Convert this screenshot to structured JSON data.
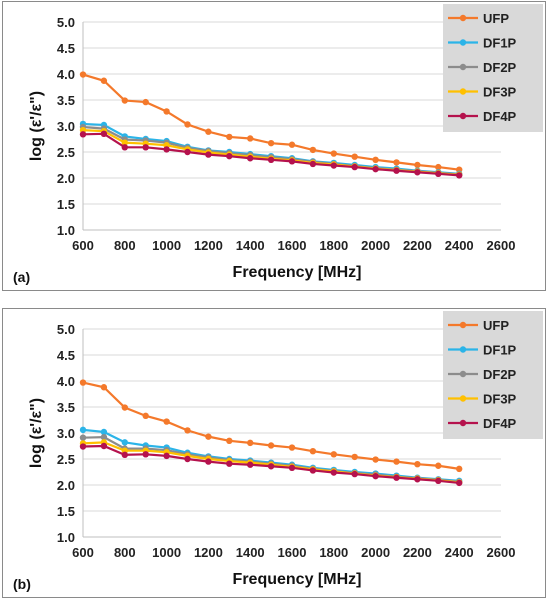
{
  "chart_data": [
    {
      "type": "line",
      "panel_label": "(a)",
      "xlabel": "Frequency [MHz]",
      "ylabel": "log (ε'/ε\")",
      "xlim": [
        600,
        2600
      ],
      "ylim": [
        1.0,
        5.0
      ],
      "xticks": [
        600,
        800,
        1000,
        1200,
        1400,
        1600,
        1800,
        2000,
        2200,
        2400,
        2600
      ],
      "yticks": [
        "1.0",
        "1.5",
        "2.0",
        "2.5",
        "3.0",
        "3.5",
        "4.0",
        "4.5",
        "5.0"
      ],
      "grid": true,
      "legend": "top-right",
      "x": [
        600,
        700,
        800,
        900,
        1000,
        1100,
        1200,
        1300,
        1400,
        1500,
        1600,
        1700,
        1800,
        1900,
        2000,
        2100,
        2200,
        2300,
        2400
      ],
      "series": [
        {
          "name": "UFP",
          "color": "#f4792b",
          "values": [
            3.99,
            3.87,
            3.49,
            3.46,
            3.28,
            3.03,
            2.89,
            2.79,
            2.76,
            2.67,
            2.64,
            2.54,
            2.47,
            2.41,
            2.35,
            2.3,
            2.25,
            2.21,
            2.16
          ]
        },
        {
          "name": "DF1P",
          "color": "#2bb4e8",
          "values": [
            3.04,
            3.02,
            2.8,
            2.75,
            2.71,
            2.6,
            2.53,
            2.5,
            2.46,
            2.42,
            2.38,
            2.32,
            2.29,
            2.25,
            2.21,
            2.18,
            2.14,
            2.11,
            2.08
          ]
        },
        {
          "name": "DF2P",
          "color": "#8c8c8c",
          "values": [
            2.98,
            2.95,
            2.74,
            2.72,
            2.68,
            2.58,
            2.52,
            2.48,
            2.44,
            2.4,
            2.36,
            2.31,
            2.27,
            2.23,
            2.19,
            2.16,
            2.13,
            2.1,
            2.07
          ]
        },
        {
          "name": "DF3P",
          "color": "#ffc000",
          "values": [
            2.92,
            2.9,
            2.68,
            2.66,
            2.63,
            2.55,
            2.49,
            2.45,
            2.41,
            2.37,
            2.34,
            2.29,
            2.26,
            2.22,
            2.18,
            2.15,
            2.12,
            2.09,
            2.06
          ]
        },
        {
          "name": "DF4P",
          "color": "#b5124d",
          "values": [
            2.84,
            2.85,
            2.59,
            2.59,
            2.55,
            2.5,
            2.45,
            2.42,
            2.38,
            2.35,
            2.32,
            2.27,
            2.24,
            2.21,
            2.17,
            2.14,
            2.11,
            2.08,
            2.05
          ]
        }
      ]
    },
    {
      "type": "line",
      "panel_label": "(b)",
      "xlabel": "Frequency [MHz]",
      "ylabel": "log (ε'/ε\")",
      "xlim": [
        600,
        2600
      ],
      "ylim": [
        1.0,
        5.0
      ],
      "xticks": [
        600,
        800,
        1000,
        1200,
        1400,
        1600,
        1800,
        2000,
        2200,
        2400,
        2600
      ],
      "yticks": [
        "1.0",
        "1.5",
        "2.0",
        "2.5",
        "3.0",
        "3.5",
        "4.0",
        "4.5",
        "5.0"
      ],
      "grid": true,
      "legend": "top-right",
      "x": [
        600,
        700,
        800,
        900,
        1000,
        1100,
        1200,
        1300,
        1400,
        1500,
        1600,
        1700,
        1800,
        1900,
        2000,
        2100,
        2200,
        2300,
        2400
      ],
      "series": [
        {
          "name": "UFP",
          "color": "#f4792b",
          "values": [
            3.97,
            3.88,
            3.49,
            3.33,
            3.22,
            3.05,
            2.93,
            2.85,
            2.81,
            2.76,
            2.72,
            2.65,
            2.59,
            2.54,
            2.49,
            2.45,
            2.4,
            2.37,
            2.31
          ]
        },
        {
          "name": "DF1P",
          "color": "#2bb4e8",
          "values": [
            3.06,
            3.02,
            2.82,
            2.76,
            2.72,
            2.62,
            2.55,
            2.5,
            2.47,
            2.43,
            2.39,
            2.33,
            2.29,
            2.25,
            2.22,
            2.18,
            2.14,
            2.11,
            2.08
          ]
        },
        {
          "name": "DF2P",
          "color": "#8c8c8c",
          "values": [
            2.91,
            2.92,
            2.7,
            2.7,
            2.67,
            2.59,
            2.53,
            2.48,
            2.45,
            2.41,
            2.37,
            2.31,
            2.27,
            2.23,
            2.2,
            2.16,
            2.13,
            2.1,
            2.06
          ]
        },
        {
          "name": "DF3P",
          "color": "#ffc000",
          "values": [
            2.8,
            2.82,
            2.66,
            2.66,
            2.63,
            2.56,
            2.5,
            2.46,
            2.43,
            2.39,
            2.35,
            2.3,
            2.26,
            2.22,
            2.18,
            2.15,
            2.12,
            2.09,
            2.05
          ]
        },
        {
          "name": "DF4P",
          "color": "#b5124d",
          "values": [
            2.74,
            2.75,
            2.58,
            2.59,
            2.56,
            2.5,
            2.45,
            2.41,
            2.39,
            2.36,
            2.33,
            2.28,
            2.24,
            2.21,
            2.17,
            2.14,
            2.11,
            2.08,
            2.04
          ]
        }
      ]
    }
  ]
}
